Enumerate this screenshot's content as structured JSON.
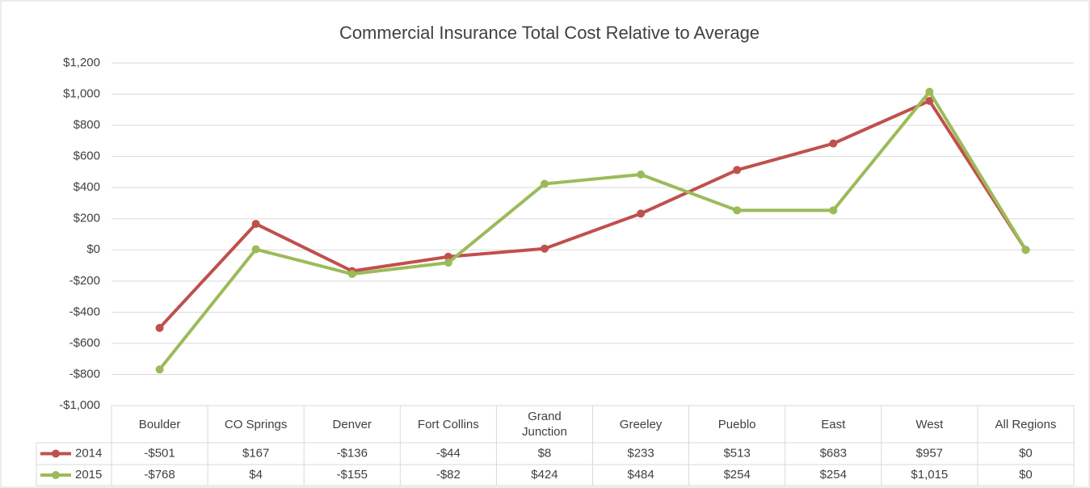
{
  "chart_data": {
    "type": "line",
    "title": "Commercial Insurance Total Cost Relative to Average",
    "categories": [
      "Boulder",
      "CO Springs",
      "Denver",
      "Fort Collins",
      "Grand Junction",
      "Greeley",
      "Pueblo",
      "East",
      "West",
      "All Regions"
    ],
    "series": [
      {
        "name": "2014",
        "color": "#c0504d",
        "values": [
          -501,
          167,
          -136,
          -44,
          8,
          233,
          513,
          683,
          957,
          0
        ],
        "value_labels": [
          "-$501",
          "$167",
          "-$136",
          "-$44",
          "$8",
          "$233",
          "$513",
          "$683",
          "$957",
          "$0"
        ]
      },
      {
        "name": "2015",
        "color": "#9bbb59",
        "values": [
          -768,
          4,
          -155,
          -82,
          424,
          484,
          254,
          254,
          1015,
          0
        ],
        "value_labels": [
          "-$768",
          "$4",
          "-$155",
          "-$82",
          "$424",
          "$484",
          "$254",
          "$254",
          "$1,015",
          "$0"
        ]
      }
    ],
    "ylim": [
      -1000,
      1200
    ],
    "yticks": [
      {
        "value": -1000,
        "label": "-$1,000"
      },
      {
        "value": -800,
        "label": "-$800"
      },
      {
        "value": -600,
        "label": "-$600"
      },
      {
        "value": -400,
        "label": "-$400"
      },
      {
        "value": -200,
        "label": "-$200"
      },
      {
        "value": 0,
        "label": "$0"
      },
      {
        "value": 200,
        "label": "$200"
      },
      {
        "value": 400,
        "label": "$400"
      },
      {
        "value": 600,
        "label": "$600"
      },
      {
        "value": 800,
        "label": "$800"
      },
      {
        "value": 1000,
        "label": "$1,000"
      },
      {
        "value": 1200,
        "label": "$1,200"
      }
    ],
    "grid": true
  }
}
